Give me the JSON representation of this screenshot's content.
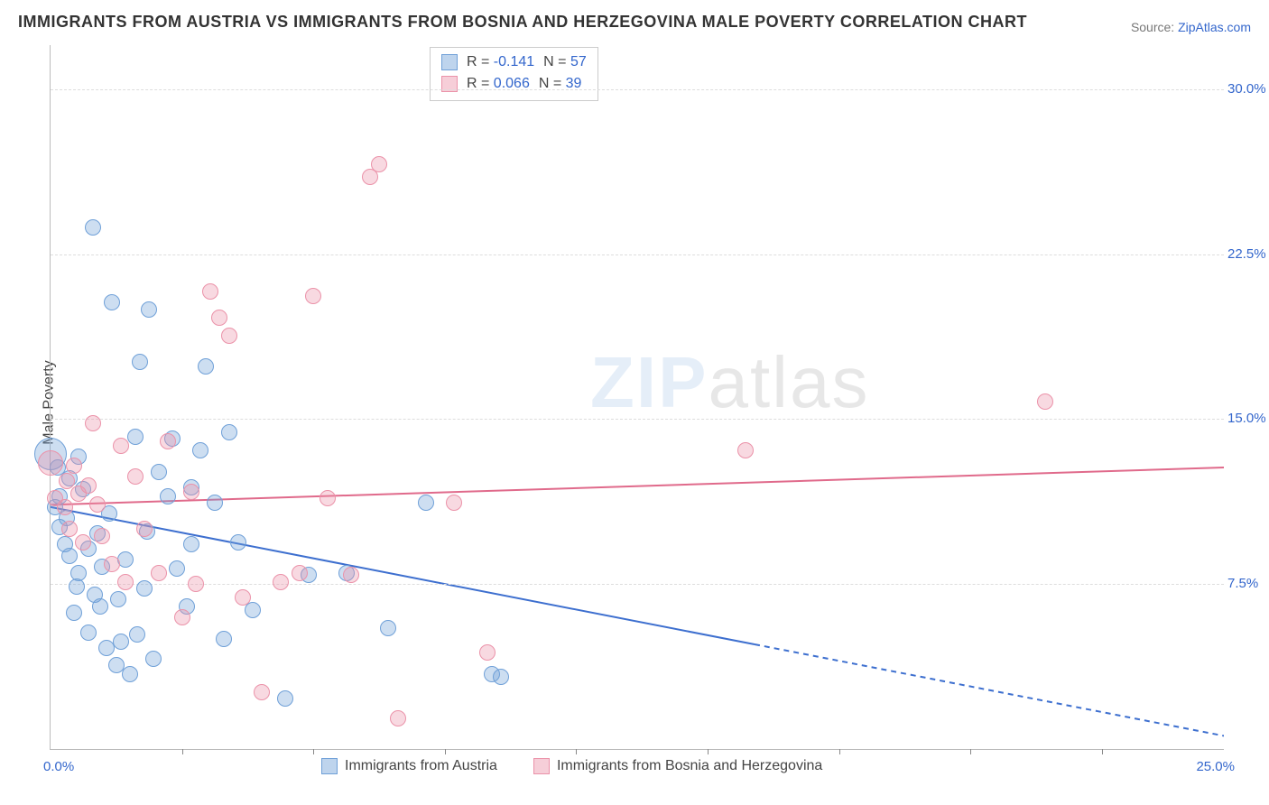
{
  "title": "IMMIGRANTS FROM AUSTRIA VS IMMIGRANTS FROM BOSNIA AND HERZEGOVINA MALE POVERTY CORRELATION CHART",
  "source": {
    "label": "Source: ",
    "name": "ZipAtlas.com"
  },
  "ylabel": "Male Poverty",
  "watermark": {
    "bold": "ZIP",
    "thin": "atlas"
  },
  "chart": {
    "type": "scatter",
    "background_color": "#ffffff",
    "grid_color": "#dddddd",
    "axis_color": "#bbbbbb",
    "xlim": [
      0,
      25
    ],
    "ylim": [
      0,
      32
    ],
    "yticks": [
      7.5,
      15.0,
      22.5,
      30.0
    ],
    "ytick_labels": [
      "7.5%",
      "15.0%",
      "22.5%",
      "30.0%"
    ],
    "xtick_positions": [
      2.8,
      5.6,
      8.4,
      11.2,
      14.0,
      16.8,
      19.6,
      22.4
    ],
    "xlabel_min": "0.0%",
    "xlabel_max": "25.0%",
    "marker_radius": 9,
    "marker_radius_large": 18,
    "legend_top": {
      "rows": [
        {
          "swatch": "A",
          "r_label": "R = ",
          "r_value": "-0.141",
          "n_label": "N = ",
          "n_value": "57"
        },
        {
          "swatch": "B",
          "r_label": "R = ",
          "r_value": "0.066",
          "n_label": "N = ",
          "n_value": "39"
        }
      ]
    },
    "legend_bottom": [
      {
        "swatch": "A",
        "label": "Immigrants from Austria"
      },
      {
        "swatch": "B",
        "label": "Immigrants from Bosnia and Herzegovina"
      }
    ],
    "trend_lines": {
      "A": {
        "color": "#3d6fcf",
        "width": 2,
        "y_at_x0": 11.0,
        "y_at_xmax": 0.6,
        "solid_until_x": 15.0
      },
      "B": {
        "color": "#e06a8b",
        "width": 2,
        "y_at_x0": 11.1,
        "y_at_xmax": 12.8,
        "solid_until_x": 25.0
      }
    },
    "series": {
      "A": {
        "color_fill": "rgba(111,160,216,0.35)",
        "color_stroke": "#6fa0d8",
        "points": [
          {
            "x": 0.0,
            "y": 13.4,
            "r": 18
          },
          {
            "x": 0.1,
            "y": 11.0
          },
          {
            "x": 0.15,
            "y": 12.8
          },
          {
            "x": 0.2,
            "y": 10.1
          },
          {
            "x": 0.2,
            "y": 11.5
          },
          {
            "x": 0.3,
            "y": 9.3
          },
          {
            "x": 0.35,
            "y": 10.5
          },
          {
            "x": 0.4,
            "y": 8.8
          },
          {
            "x": 0.4,
            "y": 12.3
          },
          {
            "x": 0.5,
            "y": 6.2
          },
          {
            "x": 0.55,
            "y": 7.4
          },
          {
            "x": 0.6,
            "y": 13.3
          },
          {
            "x": 0.6,
            "y": 8.0
          },
          {
            "x": 0.7,
            "y": 11.8
          },
          {
            "x": 0.8,
            "y": 5.3
          },
          {
            "x": 0.8,
            "y": 9.1
          },
          {
            "x": 0.9,
            "y": 23.7
          },
          {
            "x": 0.95,
            "y": 7.0
          },
          {
            "x": 1.0,
            "y": 9.8
          },
          {
            "x": 1.05,
            "y": 6.5
          },
          {
            "x": 1.1,
            "y": 8.3
          },
          {
            "x": 1.2,
            "y": 4.6
          },
          {
            "x": 1.25,
            "y": 10.7
          },
          {
            "x": 1.3,
            "y": 20.3
          },
          {
            "x": 1.4,
            "y": 3.8
          },
          {
            "x": 1.45,
            "y": 6.8
          },
          {
            "x": 1.5,
            "y": 4.9
          },
          {
            "x": 1.6,
            "y": 8.6
          },
          {
            "x": 1.7,
            "y": 3.4
          },
          {
            "x": 1.8,
            "y": 14.2
          },
          {
            "x": 1.85,
            "y": 5.2
          },
          {
            "x": 1.9,
            "y": 17.6
          },
          {
            "x": 2.0,
            "y": 7.3
          },
          {
            "x": 2.05,
            "y": 9.9
          },
          {
            "x": 2.1,
            "y": 20.0
          },
          {
            "x": 2.2,
            "y": 4.1
          },
          {
            "x": 2.3,
            "y": 12.6
          },
          {
            "x": 2.5,
            "y": 11.5
          },
          {
            "x": 2.6,
            "y": 14.1
          },
          {
            "x": 2.7,
            "y": 8.2
          },
          {
            "x": 2.9,
            "y": 6.5
          },
          {
            "x": 3.0,
            "y": 9.3
          },
          {
            "x": 3.0,
            "y": 11.9
          },
          {
            "x": 3.2,
            "y": 13.6
          },
          {
            "x": 3.3,
            "y": 17.4
          },
          {
            "x": 3.5,
            "y": 11.2
          },
          {
            "x": 3.7,
            "y": 5.0
          },
          {
            "x": 3.8,
            "y": 14.4
          },
          {
            "x": 4.0,
            "y": 9.4
          },
          {
            "x": 4.3,
            "y": 6.3
          },
          {
            "x": 5.0,
            "y": 2.3
          },
          {
            "x": 5.5,
            "y": 7.9
          },
          {
            "x": 6.3,
            "y": 8.0
          },
          {
            "x": 7.2,
            "y": 5.5
          },
          {
            "x": 8.0,
            "y": 11.2
          },
          {
            "x": 9.4,
            "y": 3.4
          },
          {
            "x": 9.6,
            "y": 3.3
          }
        ]
      },
      "B": {
        "color_fill": "rgba(235,146,169,0.35)",
        "color_stroke": "#eb92a9",
        "points": [
          {
            "x": 0.0,
            "y": 13.0,
            "r": 14
          },
          {
            "x": 0.1,
            "y": 11.4
          },
          {
            "x": 0.3,
            "y": 11.0
          },
          {
            "x": 0.35,
            "y": 12.2
          },
          {
            "x": 0.4,
            "y": 10.0
          },
          {
            "x": 0.5,
            "y": 12.9
          },
          {
            "x": 0.6,
            "y": 11.6
          },
          {
            "x": 0.7,
            "y": 9.4
          },
          {
            "x": 0.8,
            "y": 12.0
          },
          {
            "x": 0.9,
            "y": 14.8
          },
          {
            "x": 1.0,
            "y": 11.1
          },
          {
            "x": 1.1,
            "y": 9.7
          },
          {
            "x": 1.3,
            "y": 8.4
          },
          {
            "x": 1.5,
            "y": 13.8
          },
          {
            "x": 1.6,
            "y": 7.6
          },
          {
            "x": 1.8,
            "y": 12.4
          },
          {
            "x": 2.0,
            "y": 10.0
          },
          {
            "x": 2.3,
            "y": 8.0
          },
          {
            "x": 2.5,
            "y": 14.0
          },
          {
            "x": 2.8,
            "y": 6.0
          },
          {
            "x": 3.0,
            "y": 11.7
          },
          {
            "x": 3.1,
            "y": 7.5
          },
          {
            "x": 3.4,
            "y": 20.8
          },
          {
            "x": 3.6,
            "y": 19.6
          },
          {
            "x": 3.8,
            "y": 18.8
          },
          {
            "x": 4.1,
            "y": 6.9
          },
          {
            "x": 4.5,
            "y": 2.6
          },
          {
            "x": 4.9,
            "y": 7.6
          },
          {
            "x": 5.3,
            "y": 8.0
          },
          {
            "x": 5.6,
            "y": 20.6
          },
          {
            "x": 5.9,
            "y": 11.4
          },
          {
            "x": 6.4,
            "y": 7.9
          },
          {
            "x": 6.8,
            "y": 26.0
          },
          {
            "x": 7.0,
            "y": 26.6
          },
          {
            "x": 7.4,
            "y": 1.4
          },
          {
            "x": 8.6,
            "y": 11.2
          },
          {
            "x": 9.3,
            "y": 4.4
          },
          {
            "x": 14.8,
            "y": 13.6
          },
          {
            "x": 21.2,
            "y": 15.8
          }
        ]
      }
    }
  }
}
